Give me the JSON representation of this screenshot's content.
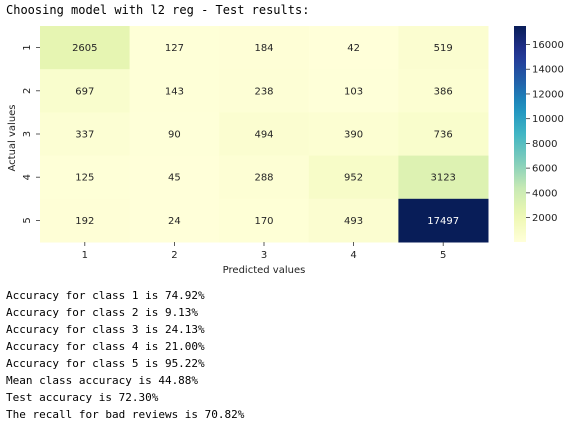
{
  "title": "Choosing model with l2 reg - Test results:",
  "chart_data": {
    "type": "heatmap",
    "xlabel": "Predicted values",
    "ylabel": "Actual values",
    "x_categories": [
      "1",
      "2",
      "3",
      "4",
      "5"
    ],
    "y_categories": [
      "1",
      "2",
      "3",
      "4",
      "5"
    ],
    "values": [
      [
        2605,
        127,
        184,
        42,
        519
      ],
      [
        697,
        143,
        238,
        103,
        386
      ],
      [
        337,
        90,
        494,
        390,
        736
      ],
      [
        125,
        45,
        288,
        952,
        3123
      ],
      [
        192,
        24,
        170,
        493,
        17497
      ]
    ],
    "colorscale": "YlGnBu",
    "vmin": 24,
    "vmax": 17497,
    "colorbar_ticks": [
      2000,
      4000,
      6000,
      8000,
      10000,
      12000,
      14000,
      16000
    ],
    "annotations": true
  },
  "output_lines": [
    "Accuracy for class 1 is 74.92%",
    "Accuracy for class 2 is 9.13%",
    "Accuracy for class 3 is 24.13%",
    "Accuracy for class 4 is 21.00%",
    "Accuracy for class 5 is 95.22%",
    "Mean class accuracy is 44.88%",
    "Test accuracy is 72.30%",
    "The recall for bad reviews is 70.82%"
  ]
}
